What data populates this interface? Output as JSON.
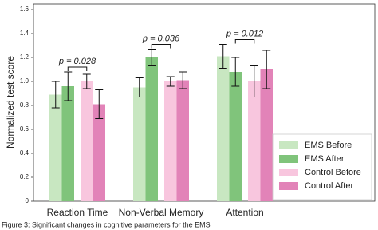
{
  "chart_data": {
    "type": "bar",
    "ylabel": "Normalized test score",
    "categories": [
      "Reaction Time",
      "Non-Verbal Memory",
      "Attention"
    ],
    "series": [
      {
        "name": "EMS Before",
        "color": "#c8e7c1",
        "values": [
          0.89,
          0.95,
          1.21
        ],
        "errors": [
          0.11,
          0.08,
          0.1
        ]
      },
      {
        "name": "EMS After",
        "color": "#80c47b",
        "values": [
          0.96,
          1.2,
          1.08
        ],
        "errors": [
          0.12,
          0.07,
          0.12
        ]
      },
      {
        "name": "Control Before",
        "color": "#f8c6de",
        "values": [
          1.0,
          1.0,
          1.0
        ],
        "errors": [
          0.06,
          0.04,
          0.13
        ]
      },
      {
        "name": "Control After",
        "color": "#e283b8",
        "values": [
          0.81,
          1.01,
          1.1
        ],
        "errors": [
          0.12,
          0.07,
          0.16
        ]
      }
    ],
    "annotations": [
      "p = 0.028",
      "p = 0.036",
      "p = 0.012"
    ],
    "ylim": [
      0,
      1.6
    ],
    "yticks": [
      0,
      0.2,
      0.4,
      0.6,
      0.8,
      {
        "value": 1.0,
        "label": "1.0"
      },
      1.2,
      1.4,
      1.6
    ],
    "legend": "lower right",
    "caption": "Figure 3: Significant changes in cognitive parameters for the EMS"
  }
}
